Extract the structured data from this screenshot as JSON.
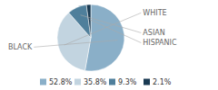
{
  "chart_data": {
    "type": "pie",
    "categories": [
      "BLACK",
      "WHITE",
      "ASIAN",
      "HISPANIC"
    ],
    "values": [
      52.8,
      35.8,
      9.3,
      2.1
    ],
    "value_labels": [
      "52.8%",
      "35.8%",
      "9.3%",
      "2.1%"
    ],
    "colors": [
      "#8aafc8",
      "#c2d4e0",
      "#4f7f9b",
      "#1a3a52"
    ],
    "legend": "bottom"
  }
}
